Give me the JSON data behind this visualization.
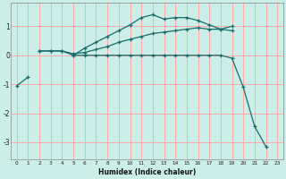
{
  "xlabel": "Humidex (Indice chaleur)",
  "x": [
    0,
    1,
    2,
    3,
    4,
    5,
    6,
    7,
    8,
    9,
    10,
    11,
    12,
    13,
    14,
    15,
    16,
    17,
    18,
    19,
    20,
    21,
    22,
    23
  ],
  "line1": [
    null,
    null,
    0.15,
    0.15,
    0.15,
    0.0,
    0.25,
    0.45,
    0.65,
    0.85,
    1.05,
    1.3,
    1.4,
    1.25,
    1.3,
    1.3,
    1.2,
    1.05,
    0.9,
    1.0,
    null,
    null,
    null,
    null
  ],
  "line2": [
    null,
    null,
    0.15,
    0.15,
    0.15,
    0.05,
    0.1,
    0.2,
    0.3,
    0.45,
    0.55,
    0.65,
    0.75,
    0.8,
    0.85,
    0.9,
    0.95,
    0.9,
    0.9,
    0.85,
    null,
    null,
    null,
    null
  ],
  "line3": [
    -1.05,
    -0.75,
    null,
    null,
    null,
    0.0,
    0.0,
    0.0,
    0.0,
    0.0,
    0.0,
    0.0,
    0.0,
    0.0,
    0.0,
    0.0,
    0.0,
    0.0,
    0.0,
    -0.1,
    -1.1,
    -2.45,
    -3.15,
    null
  ],
  "bg_color": "#cceee8",
  "line_color": "#1a6b6b",
  "grid_color": "#ffaaaa",
  "ylim": [
    -3.6,
    1.8
  ],
  "xlim": [
    -0.5,
    23.5
  ],
  "yticks": [
    -3,
    -2,
    -1,
    0,
    1
  ],
  "xticks": [
    0,
    1,
    2,
    3,
    4,
    5,
    6,
    7,
    8,
    9,
    10,
    11,
    12,
    13,
    14,
    15,
    16,
    17,
    18,
    19,
    20,
    21,
    22,
    23
  ]
}
